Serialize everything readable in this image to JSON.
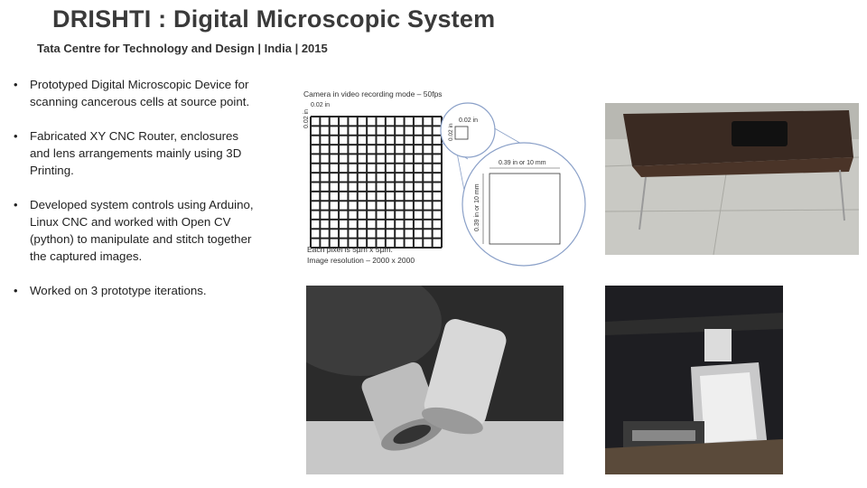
{
  "header": {
    "title": "DRISHTI : Digital Microscopic System",
    "subtitle": "Tata Centre for Technology and Design | India | 2015"
  },
  "bullets": [
    "Prototyped  Digital Microscopic Device for scanning cancerous cells at source point.",
    "Fabricated XY CNC Router, enclosures and lens arrangements mainly using 3D Printing.",
    "Developed system controls using Arduino,  Linux CNC and worked with Open CV (python) to manipulate and stitch together the captured images.",
    "Worked on 3 prototype  iterations."
  ],
  "diagram": {
    "caption": "Camera in video recording mode – 50fps",
    "grid_top_label": "0.02 in",
    "grid_side_label": "0.02 in",
    "small_circle_label": "0.02 in",
    "big_circle_width_label": "0.39 in or 10 mm",
    "big_circle_height_label": "0.39 in or 10 mm",
    "note_line1": "Each pixel is 5µm x 5µm.",
    "note_line2": "Image resolution – 2000 x 2000"
  }
}
